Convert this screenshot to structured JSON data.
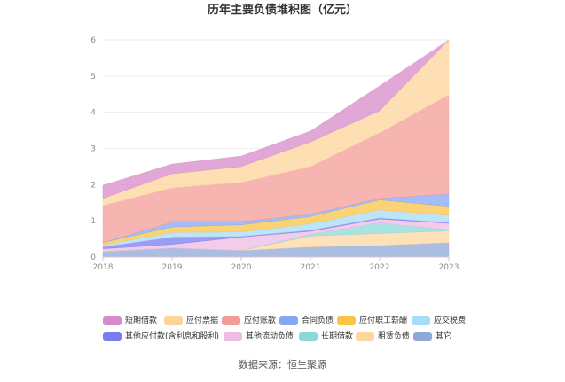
{
  "source": "数据来源：恒生聚源",
  "chart_data": {
    "type": "area",
    "stacked": true,
    "title": "历年主要负债堆积图（亿元）",
    "categories": [
      "2018",
      "2019",
      "2020",
      "2021",
      "2022",
      "2023"
    ],
    "ylim": [
      0,
      6
    ],
    "yticks": [
      0,
      1,
      2,
      3,
      4,
      5,
      6
    ],
    "grid": true,
    "legend_position": "bottom",
    "series": [
      {
        "name": "短期借款",
        "color": "#d78bca",
        "values": [
          0.36,
          0.27,
          0.29,
          0.3,
          0.69,
          0.0
        ]
      },
      {
        "name": "应付票据",
        "color": "#fdd39a",
        "values": [
          0.2,
          0.39,
          0.44,
          0.68,
          0.61,
          1.52
        ]
      },
      {
        "name": "应付账款",
        "color": "#f39c95",
        "values": [
          1.02,
          0.95,
          1.08,
          1.32,
          1.81,
          2.74
        ]
      },
      {
        "name": "合同负债",
        "color": "#86a6f6",
        "values": [
          0.0,
          0.13,
          0.09,
          0.06,
          0.04,
          0.34
        ]
      },
      {
        "name": "应付职工薪酬",
        "color": "#fbc445",
        "values": [
          0.07,
          0.15,
          0.2,
          0.2,
          0.28,
          0.25
        ]
      },
      {
        "name": "应交税费",
        "color": "#a8dbf5",
        "values": [
          0.05,
          0.13,
          0.12,
          0.18,
          0.22,
          0.2
        ]
      },
      {
        "name": "其他应付款(含利息和股利)",
        "color": "#7a7bf0",
        "values": [
          0.05,
          0.2,
          0.02,
          0.03,
          0.03,
          0.02
        ]
      },
      {
        "name": "其他流动负债",
        "color": "#eebbe3",
        "values": [
          0.08,
          0.1,
          0.37,
          0.08,
          0.1,
          0.18
        ]
      },
      {
        "name": "长期借款",
        "color": "#8ed7d7",
        "values": [
          0.0,
          0.0,
          0.0,
          0.05,
          0.3,
          0.03
        ]
      },
      {
        "name": "租赁负债",
        "color": "#fdd7a0",
        "values": [
          0.0,
          0.0,
          0.0,
          0.3,
          0.33,
          0.32
        ]
      },
      {
        "name": "其它",
        "color": "#8ea8d8",
        "values": [
          0.15,
          0.25,
          0.18,
          0.28,
          0.32,
          0.4
        ]
      }
    ]
  }
}
